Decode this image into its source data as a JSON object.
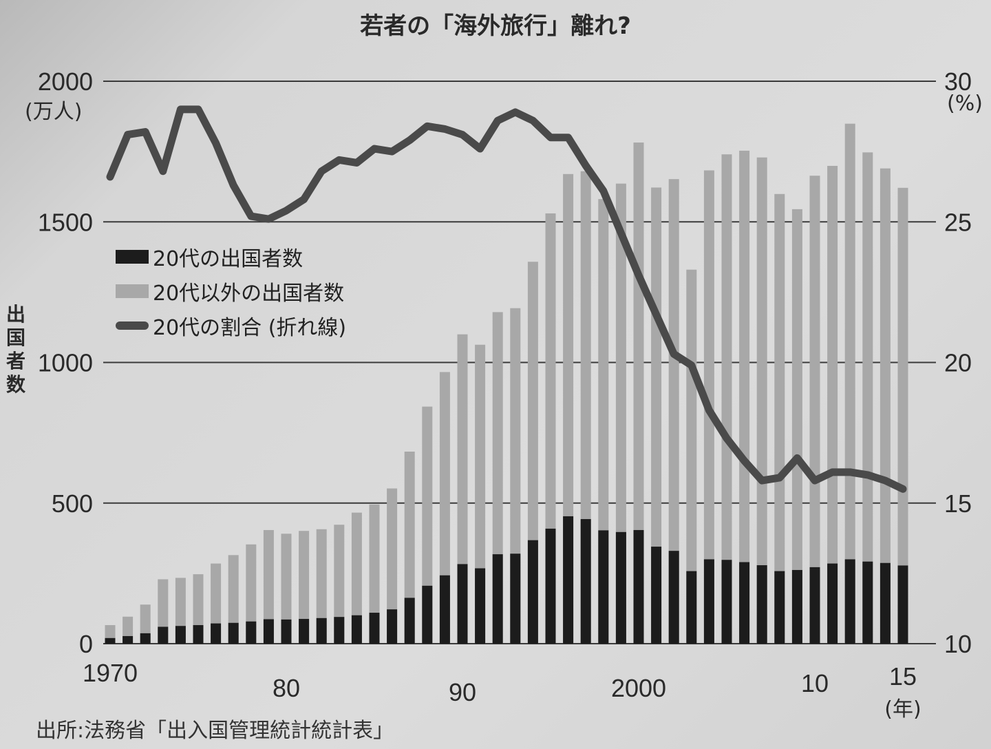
{
  "chart_data": {
    "type": "bar",
    "subtype": "stacked bar + line (dual axis)",
    "title": "若者の「海外旅行」離れ?",
    "xlabel": "(年)",
    "ylabel": "出国者数",
    "ylabel_unit": "(万人)",
    "y2label_unit": "(%)",
    "ylim": [
      0,
      2000
    ],
    "y2lim": [
      10,
      30
    ],
    "y_ticks": [
      "0",
      "500",
      "1000",
      "1500",
      "2000"
    ],
    "y2_ticks": [
      "10",
      "15",
      "20",
      "25",
      "30"
    ],
    "x_tick_labels": [
      {
        "year": 1970,
        "label": "1970"
      },
      {
        "year": 1980,
        "label": "80"
      },
      {
        "year": 1990,
        "label": "90"
      },
      {
        "year": 2000,
        "label": "2000"
      },
      {
        "year": 2010,
        "label": "10"
      },
      {
        "year": 2015,
        "label": "15"
      }
    ],
    "grid": true,
    "legend_position": "upper-left (inside plot)",
    "categories": [
      1970,
      1971,
      1972,
      1973,
      1974,
      1975,
      1976,
      1977,
      1978,
      1979,
      1980,
      1981,
      1982,
      1983,
      1984,
      1985,
      1986,
      1987,
      1988,
      1989,
      1990,
      1991,
      1992,
      1993,
      1994,
      1995,
      1996,
      1997,
      1998,
      1999,
      2000,
      2001,
      2002,
      2003,
      2004,
      2005,
      2006,
      2007,
      2008,
      2009,
      2010,
      2011,
      2012,
      2013,
      2014,
      2015
    ],
    "series": [
      {
        "name": "20代の出国者数",
        "kind": "bar",
        "color": "#1c1c1c",
        "axis": "left",
        "values": [
          20,
          27,
          37,
          60,
          63,
          66,
          72,
          74,
          79,
          87,
          86,
          88,
          91,
          95,
          101,
          110,
          122,
          163,
          206,
          243,
          283,
          268,
          318,
          320,
          368,
          409,
          453,
          443,
          403,
          397,
          404,
          345,
          330,
          258,
          300,
          298,
          290,
          279,
          258,
          262,
          272,
          285,
          300,
          292,
          287,
          278
        ]
      },
      {
        "name": "20代以外の出国者数",
        "kind": "bar",
        "color": "#a8a8a8",
        "axis": "left",
        "note": "values are totals (top of stacked bar)",
        "totals": [
          66,
          96,
          139,
          229,
          234,
          247,
          285,
          315,
          353,
          404,
          391,
          401,
          407,
          423,
          466,
          495,
          552,
          683,
          843,
          966,
          1100,
          1063,
          1179,
          1193,
          1358,
          1530,
          1670,
          1680,
          1581,
          1636,
          1782,
          1622,
          1652,
          1330,
          1683,
          1740,
          1753,
          1729,
          1599,
          1545,
          1664,
          1699,
          1849,
          1747,
          1690,
          1621
        ]
      },
      {
        "name": "20代の割合(折れ線)",
        "kind": "line",
        "color": "#4a4a4a",
        "axis": "right",
        "values": [
          26.6,
          28.1,
          28.2,
          26.8,
          29.0,
          29.0,
          27.8,
          26.3,
          25.2,
          25.1,
          25.4,
          25.8,
          26.8,
          27.2,
          27.1,
          27.6,
          27.5,
          27.9,
          28.4,
          28.3,
          28.1,
          27.6,
          28.6,
          28.9,
          28.6,
          28.0,
          28.0,
          27.0,
          26.1,
          24.6,
          23.1,
          21.7,
          20.3,
          19.9,
          18.3,
          17.3,
          16.5,
          15.8,
          15.9,
          16.6,
          15.8,
          16.1,
          16.1,
          16.0,
          15.8,
          15.5
        ]
      }
    ],
    "source": "出所:法務省「出入国管理統計統計表」"
  },
  "labels": {
    "title": "若者の「海外旅行」離れ?",
    "y_unit_left": "(万人)",
    "y_unit_right": "(%)",
    "x_unit": "(年)",
    "ylabel_vertical": [
      "出",
      "国",
      "者",
      "数"
    ],
    "legend": [
      {
        "label": "20代の出国者数",
        "color": "#1c1c1c",
        "shape": "bar"
      },
      {
        "label": "20代以外の出国者数",
        "color": "#a8a8a8",
        "shape": "bar"
      },
      {
        "label": "20代の割合 (折れ線)",
        "color": "#4a4a4a",
        "shape": "line"
      }
    ],
    "source": "出所:法務省「出入国管理統計統計表」"
  }
}
